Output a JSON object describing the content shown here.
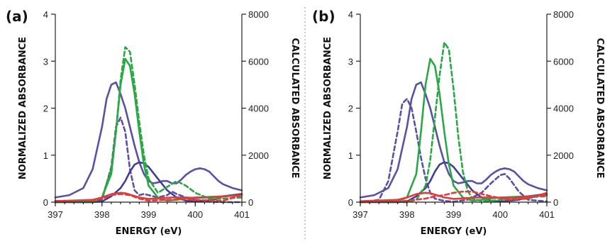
{
  "figure": {
    "divider_color": "#9a9a9a"
  },
  "chart_data": [
    {
      "type": "line",
      "panel_label": "(a)",
      "xlabel": "ENERGY (eV)",
      "ylabel": "NORMALIZED ABSORBANCE",
      "y2label": "CALCULATED ABSORBANCE",
      "xlim": [
        397,
        401
      ],
      "ylim": [
        0,
        4
      ],
      "y2lim": [
        0,
        8000
      ],
      "xticks": [
        "397",
        "398",
        "399",
        "400",
        "401"
      ],
      "yticks": [
        "0",
        "1",
        "2",
        "3",
        "4"
      ],
      "y2ticks": [
        "0",
        "2000",
        "4000",
        "6000",
        "8000"
      ],
      "grid": false,
      "series": [
        {
          "color": "#5b4fa6",
          "style": "solid",
          "axis": "left",
          "x": [
            397.0,
            397.3,
            397.6,
            397.8,
            398.0,
            398.1,
            398.2,
            398.3,
            398.4,
            398.5,
            398.6,
            398.7,
            398.8,
            398.9,
            399.0,
            399.1,
            399.2,
            399.3,
            399.4,
            399.5,
            399.6,
            399.7,
            399.8,
            399.9,
            400.0,
            400.1,
            400.2,
            400.3,
            400.4,
            400.5,
            400.6,
            400.8,
            401.0
          ],
          "y": [
            0.1,
            0.15,
            0.3,
            0.7,
            1.6,
            2.2,
            2.5,
            2.55,
            2.3,
            2.0,
            1.6,
            1.2,
            0.85,
            0.6,
            0.45,
            0.4,
            0.42,
            0.45,
            0.45,
            0.4,
            0.4,
            0.48,
            0.58,
            0.65,
            0.7,
            0.72,
            0.7,
            0.65,
            0.55,
            0.45,
            0.38,
            0.3,
            0.25
          ]
        },
        {
          "color": "#5b4fa6",
          "style": "dashed",
          "axis": "right",
          "x": [
            397.0,
            397.8,
            398.0,
            398.2,
            398.3,
            398.4,
            398.5,
            398.6,
            398.7,
            398.8,
            398.9,
            399.0,
            399.2,
            399.4,
            399.5,
            399.6,
            399.8,
            400.0,
            400.3,
            400.6,
            401.0
          ],
          "y": [
            0,
            0,
            100,
            1500,
            3200,
            3600,
            3000,
            1400,
            500,
            300,
            350,
            300,
            200,
            300,
            450,
            350,
            200,
            100,
            20,
            0,
            0
          ]
        },
        {
          "color": "#5b4fa6",
          "style": "solid",
          "axis": "right",
          "dark": true,
          "x": [
            397.0,
            397.8,
            398.0,
            398.2,
            398.4,
            398.5,
            398.6,
            398.7,
            398.8,
            398.9,
            399.0,
            399.2,
            399.4,
            399.6,
            399.8,
            400.0,
            400.4,
            400.6,
            401.0
          ],
          "y": [
            0,
            0,
            30,
            250,
            600,
            900,
            1300,
            1600,
            1700,
            1650,
            1500,
            1000,
            500,
            200,
            60,
            20,
            100,
            250,
            350
          ]
        },
        {
          "color": "#2aa845",
          "style": "solid",
          "axis": "left",
          "x": [
            397.0,
            397.8,
            398.0,
            398.2,
            398.3,
            398.4,
            398.5,
            398.6,
            398.7,
            398.8,
            398.9,
            399.0,
            399.2,
            399.4,
            399.6,
            399.8,
            400.0,
            400.5,
            401.0
          ],
          "y": [
            0,
            0.02,
            0.1,
            0.6,
            1.5,
            2.5,
            3.05,
            2.9,
            2.3,
            1.5,
            0.8,
            0.35,
            0.1,
            0.03,
            0.05,
            0.08,
            0.1,
            0.12,
            0.15
          ]
        },
        {
          "color": "#2aa845",
          "style": "dashed",
          "axis": "right",
          "x": [
            397.0,
            397.8,
            398.0,
            398.2,
            398.3,
            398.4,
            398.5,
            398.6,
            398.7,
            398.8,
            398.9,
            399.0,
            399.2,
            399.4,
            399.6,
            399.8,
            400.0,
            400.3,
            400.6,
            401.0
          ],
          "y": [
            0,
            0,
            200,
            1400,
            3000,
            5200,
            6600,
            6400,
            5000,
            3400,
            2000,
            1000,
            400,
            650,
            900,
            700,
            400,
            150,
            150,
            200
          ]
        },
        {
          "color": "#e23b3b",
          "style": "solid",
          "axis": "left",
          "x": [
            397.0,
            397.8,
            398.0,
            398.2,
            398.4,
            398.5,
            398.6,
            398.8,
            399.0,
            399.2,
            399.5,
            399.8,
            400.0,
            400.3,
            400.6,
            401.0
          ],
          "y": [
            0.02,
            0.05,
            0.1,
            0.17,
            0.2,
            0.19,
            0.16,
            0.1,
            0.07,
            0.08,
            0.1,
            0.1,
            0.09,
            0.1,
            0.12,
            0.15
          ]
        },
        {
          "color": "#e23b3b",
          "style": "dashed",
          "axis": "right",
          "x": [
            397.0,
            397.8,
            398.0,
            398.2,
            398.4,
            398.6,
            398.8,
            399.0,
            399.4,
            399.8,
            400.2,
            400.6,
            401.0
          ],
          "y": [
            50,
            80,
            150,
            300,
            350,
            300,
            150,
            60,
            100,
            120,
            80,
            60,
            300
          ]
        }
      ]
    },
    {
      "type": "line",
      "panel_label": "(b)",
      "xlabel": "ENERGY (eV)",
      "ylabel": "NORMALIZED ABSORBANCE",
      "y2label": "CALCULATED ABSORBANCE",
      "xlim": [
        397,
        401
      ],
      "ylim": [
        0,
        4
      ],
      "y2lim": [
        0,
        8000
      ],
      "xticks": [
        "397",
        "398",
        "399",
        "400",
        "401"
      ],
      "yticks": [
        "0",
        "1",
        "2",
        "3",
        "4"
      ],
      "y2ticks": [
        "0",
        "2000",
        "4000",
        "6000",
        "8000"
      ],
      "grid": false,
      "series": [
        {
          "color": "#5b4fa6",
          "style": "solid",
          "axis": "left",
          "x": [
            397.0,
            397.3,
            397.6,
            397.8,
            398.0,
            398.1,
            398.2,
            398.3,
            398.4,
            398.5,
            398.6,
            398.7,
            398.8,
            398.9,
            399.0,
            399.1,
            399.2,
            399.3,
            399.4,
            399.5,
            399.6,
            399.7,
            399.8,
            399.9,
            400.0,
            400.1,
            400.2,
            400.3,
            400.4,
            400.5,
            400.6,
            400.8,
            401.0
          ],
          "y": [
            0.1,
            0.15,
            0.3,
            0.7,
            1.6,
            2.2,
            2.5,
            2.55,
            2.3,
            2.0,
            1.6,
            1.2,
            0.85,
            0.6,
            0.45,
            0.4,
            0.42,
            0.45,
            0.45,
            0.4,
            0.4,
            0.48,
            0.58,
            0.65,
            0.7,
            0.72,
            0.7,
            0.65,
            0.55,
            0.45,
            0.38,
            0.3,
            0.25
          ]
        },
        {
          "color": "#5b4fa6",
          "style": "dashed",
          "axis": "right",
          "x": [
            397.0,
            397.4,
            397.6,
            397.8,
            397.9,
            398.0,
            398.1,
            398.2,
            398.3,
            398.4,
            398.5,
            398.6,
            398.8,
            399.0,
            399.3,
            399.6,
            399.8,
            400.0,
            400.1,
            400.2,
            400.4,
            400.6,
            401.0
          ],
          "y": [
            0,
            100,
            900,
            3000,
            4200,
            4400,
            4000,
            3000,
            1900,
            1000,
            400,
            150,
            50,
            20,
            100,
            400,
            800,
            1150,
            1200,
            1000,
            450,
            100,
            30
          ]
        },
        {
          "color": "#5b4fa6",
          "style": "solid",
          "axis": "right",
          "dark": true,
          "x": [
            397.0,
            397.8,
            398.0,
            398.2,
            398.4,
            398.5,
            398.6,
            398.7,
            398.8,
            398.9,
            399.0,
            399.2,
            399.4,
            399.6,
            399.8,
            400.0,
            400.4,
            400.6,
            401.0
          ],
          "y": [
            0,
            0,
            30,
            250,
            600,
            900,
            1300,
            1600,
            1700,
            1650,
            1500,
            1000,
            500,
            200,
            60,
            20,
            100,
            250,
            350
          ]
        },
        {
          "color": "#2aa845",
          "style": "solid",
          "axis": "left",
          "x": [
            397.0,
            397.8,
            398.0,
            398.2,
            398.3,
            398.4,
            398.5,
            398.6,
            398.7,
            398.8,
            398.9,
            399.0,
            399.2,
            399.4,
            399.6,
            399.8,
            400.0,
            400.5,
            401.0
          ],
          "y": [
            0,
            0.02,
            0.1,
            0.6,
            1.5,
            2.5,
            3.05,
            2.9,
            2.3,
            1.5,
            0.8,
            0.35,
            0.1,
            0.03,
            0.05,
            0.08,
            0.1,
            0.12,
            0.15
          ]
        },
        {
          "color": "#2aa845",
          "style": "dashed",
          "axis": "right",
          "x": [
            397.0,
            398.0,
            398.2,
            398.4,
            398.5,
            398.6,
            398.7,
            398.8,
            398.9,
            399.0,
            399.1,
            399.2,
            399.3,
            399.4,
            399.6,
            399.8,
            400.0,
            400.5,
            401.0
          ],
          "y": [
            0,
            0,
            100,
            700,
            1800,
            3600,
            5400,
            6800,
            6500,
            4800,
            2800,
            1300,
            500,
            150,
            50,
            50,
            100,
            200,
            250
          ]
        },
        {
          "color": "#e23b3b",
          "style": "solid",
          "axis": "left",
          "x": [
            397.0,
            397.8,
            398.0,
            398.2,
            398.4,
            398.5,
            398.6,
            398.8,
            399.0,
            399.2,
            399.5,
            399.8,
            400.0,
            400.3,
            400.6,
            401.0
          ],
          "y": [
            0.02,
            0.05,
            0.1,
            0.17,
            0.2,
            0.19,
            0.16,
            0.1,
            0.07,
            0.08,
            0.1,
            0.1,
            0.09,
            0.1,
            0.12,
            0.15
          ]
        },
        {
          "color": "#e23b3b",
          "style": "dashed",
          "axis": "right",
          "x": [
            397.0,
            397.8,
            398.0,
            398.4,
            398.6,
            398.8,
            399.0,
            399.2,
            399.4,
            399.6,
            399.8,
            400.2,
            400.6,
            401.0
          ],
          "y": [
            0,
            20,
            60,
            150,
            250,
            300,
            400,
            450,
            450,
            350,
            250,
            100,
            150,
            400
          ]
        }
      ]
    }
  ]
}
